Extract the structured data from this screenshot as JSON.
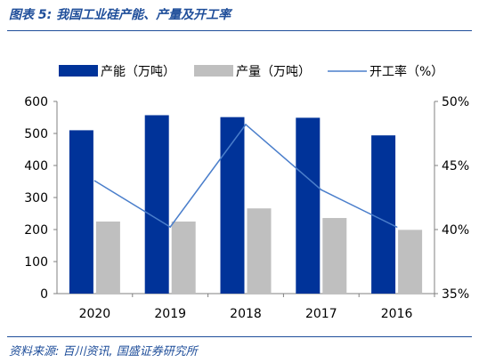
{
  "header": {
    "title": "图表 5:  我国工业硅产能、产量及开工率"
  },
  "footer": {
    "source": "资料来源:  百川资讯, 国盛证券研究所"
  },
  "colors": {
    "capacity": "#003399",
    "production": "#bfbfbf",
    "utilization": "#4a7ecb",
    "rule": "#1f4e9a"
  },
  "chart_data": {
    "type": "bar",
    "categories": [
      "2020",
      "2019",
      "2018",
      "2017",
      "2016"
    ],
    "series": [
      {
        "name": "产能（万吨）",
        "type": "bar",
        "axis": "left",
        "values": [
          510,
          557,
          551,
          549,
          494
        ]
      },
      {
        "name": "产量（万吨）",
        "type": "bar",
        "axis": "left",
        "values": [
          225,
          225,
          266,
          236,
          199
        ]
      },
      {
        "name": "开工率（%）",
        "type": "line",
        "axis": "right",
        "values": [
          43.8,
          40.2,
          48.2,
          43.1,
          40.2
        ]
      }
    ],
    "y_left": {
      "ylim": [
        0,
        600
      ],
      "ticks": [
        "0",
        "100",
        "200",
        "300",
        "400",
        "500",
        "600"
      ]
    },
    "y_right": {
      "ylim": [
        35,
        50
      ],
      "ticks": [
        "35%",
        "40%",
        "45%",
        "50%"
      ]
    },
    "legend": "top",
    "grid": false
  }
}
